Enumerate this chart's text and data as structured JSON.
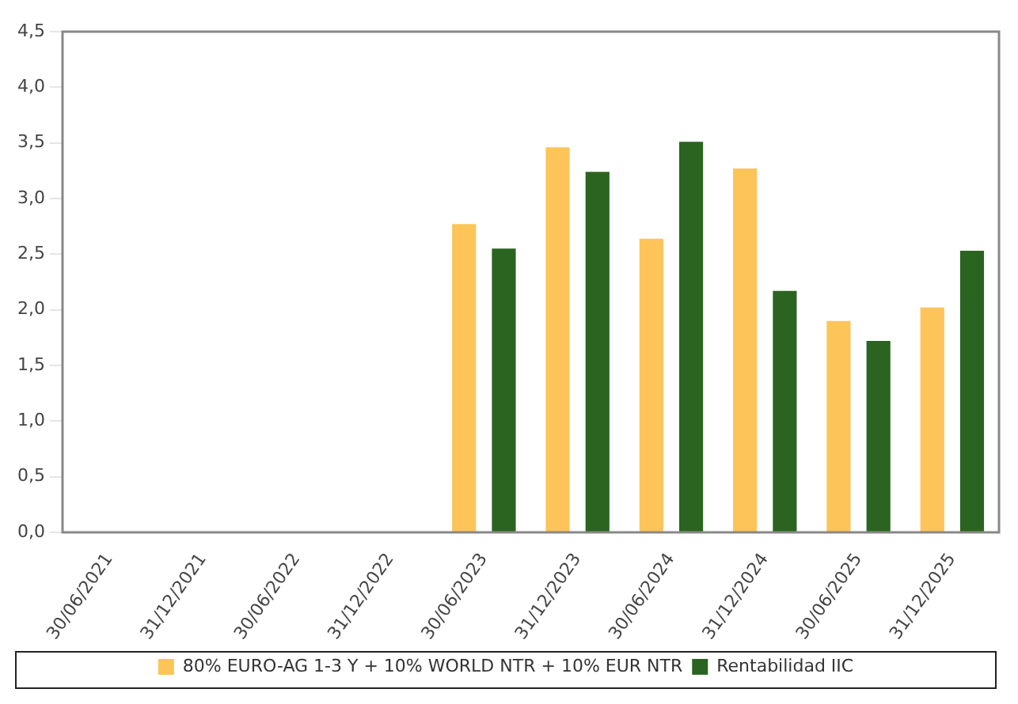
{
  "chart_data": {
    "type": "bar",
    "categories": [
      "30/06/2021",
      "31/12/2021",
      "30/06/2022",
      "31/12/2022",
      "30/06/2023",
      "31/12/2023",
      "30/06/2024",
      "31/12/2024",
      "30/06/2025",
      "31/12/2025"
    ],
    "series": [
      {
        "name": "80% EURO-AG 1-3 Y + 10% WORLD NTR + 10% EUR NTR",
        "color": "#fcc459",
        "values": [
          null,
          null,
          null,
          null,
          2.77,
          3.46,
          2.64,
          3.27,
          1.9,
          2.02
        ]
      },
      {
        "name": "Rentabilidad IIC",
        "color": "#2a6420",
        "values": [
          null,
          null,
          null,
          null,
          2.55,
          3.24,
          3.51,
          2.17,
          1.72,
          2.53
        ]
      }
    ],
    "ylim": [
      0,
      4.5
    ],
    "yticks": [
      {
        "value": 0,
        "label": "0,0"
      },
      {
        "value": 0.5,
        "label": "0,5"
      },
      {
        "value": 1,
        "label": "1,0"
      },
      {
        "value": 1.5,
        "label": "1,5"
      },
      {
        "value": 2,
        "label": "2,0"
      },
      {
        "value": 2.5,
        "label": "2,5"
      },
      {
        "value": 3,
        "label": "3,0"
      },
      {
        "value": 3.5,
        "label": "3,5"
      },
      {
        "value": 4,
        "label": "4,0"
      },
      {
        "value": 4.5,
        "label": "4,5"
      }
    ],
    "grid": false,
    "legend": "bottom"
  }
}
